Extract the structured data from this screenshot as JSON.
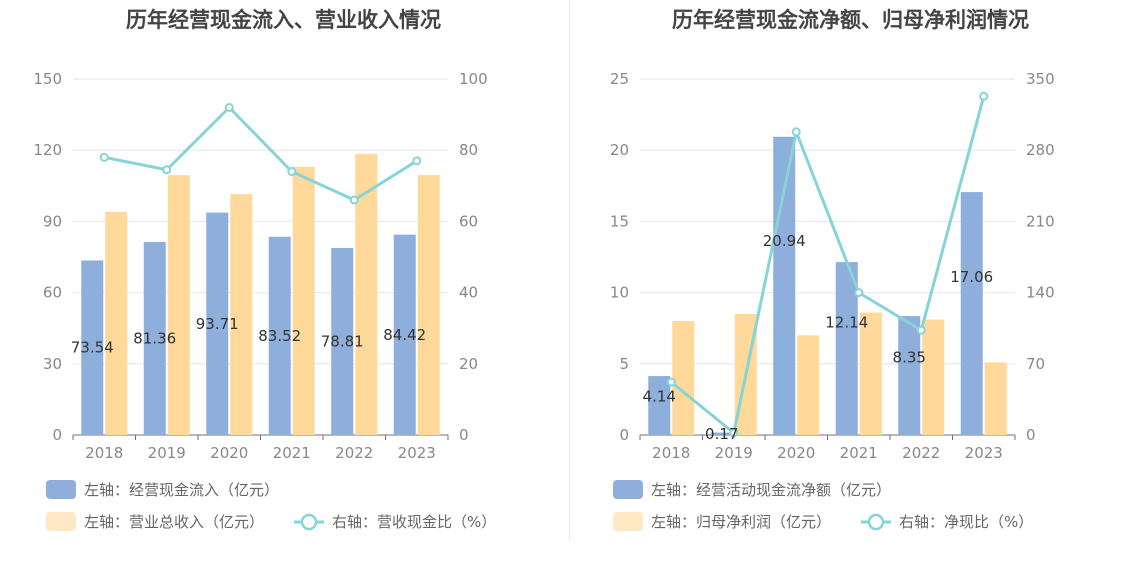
{
  "chart_data": [
    {
      "type": "bar",
      "title": "历年经营现金流入、营业收入情况",
      "categories": [
        "2018",
        "2019",
        "2020",
        "2021",
        "2022",
        "2023"
      ],
      "left_axis": {
        "ticks": [
          "0",
          "30",
          "60",
          "90",
          "120",
          "150"
        ],
        "ylim": [
          0,
          150
        ]
      },
      "right_axis": {
        "ticks": [
          "0",
          "20",
          "40",
          "60",
          "80",
          "100"
        ],
        "ylim": [
          0,
          100
        ]
      },
      "series": [
        {
          "name": "左轴：经营现金流入（亿元）",
          "type": "bar",
          "axis": "left",
          "color": "#8eaedb",
          "values": [
            73.54,
            81.36,
            93.71,
            83.52,
            78.81,
            84.42
          ],
          "labels": [
            "73.54",
            "81.36",
            "93.71",
            "83.52",
            "78.81",
            "84.42"
          ]
        },
        {
          "name": "左轴：营业总收入（亿元）",
          "type": "bar",
          "axis": "left",
          "color": "#ffd99a",
          "values": [
            94,
            109.5,
            101.5,
            113,
            118.5,
            109.5
          ]
        },
        {
          "name": "右轴：营收现金比（%）",
          "type": "line",
          "axis": "right",
          "color": "#86d4d8",
          "values": [
            78,
            74.5,
            92,
            74,
            66,
            77
          ]
        }
      ],
      "grid": true,
      "legend": "bottom-left"
    },
    {
      "type": "bar",
      "title": "历年经营现金流净额、归母净利润情况",
      "categories": [
        "2018",
        "2019",
        "2020",
        "2021",
        "2022",
        "2023"
      ],
      "left_axis": {
        "ticks": [
          "0",
          "5",
          "10",
          "15",
          "20",
          "25"
        ],
        "ylim": [
          0,
          25
        ]
      },
      "right_axis": {
        "ticks": [
          "0",
          "70",
          "140",
          "210",
          "280",
          "350"
        ],
        "ylim": [
          0,
          350
        ]
      },
      "series": [
        {
          "name": "左轴：经营活动现金流净额（亿元）",
          "type": "bar",
          "axis": "left",
          "color": "#8eaedb",
          "values": [
            4.14,
            0.17,
            20.94,
            12.14,
            8.35,
            17.06
          ],
          "labels": [
            "4.14",
            "0.17",
            "20.94",
            "12.14",
            "8.35",
            "17.06"
          ]
        },
        {
          "name": "左轴：归母净利润（亿元）",
          "type": "bar",
          "axis": "left",
          "color": "#ffd99a",
          "values": [
            8,
            8.5,
            7,
            8.6,
            8.1,
            5.1
          ]
        },
        {
          "name": "右轴：净现比（%）",
          "type": "line",
          "axis": "right",
          "color": "#86d4d8",
          "values": [
            52,
            2,
            298,
            140,
            103,
            333
          ]
        }
      ],
      "grid": true,
      "legend": "bottom-left"
    }
  ]
}
